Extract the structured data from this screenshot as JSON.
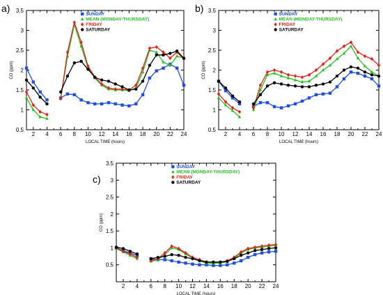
{
  "colors": {
    "SUNDAY": "#1f4fe0",
    "MEAN (MONDAY-THURSDAY)": "#22c21c",
    "FRIDAY": "#e2231a",
    "SATURDAY": "#000000"
  },
  "chart_data": [
    {
      "panel": "a)",
      "type": "line",
      "xlabel": "LOCAL TIME (hours)",
      "ylabel": "CO (ppm)",
      "xlim": [
        1,
        24
      ],
      "ylim": [
        0.5,
        3.5
      ],
      "xticks": [
        2,
        4,
        6,
        8,
        10,
        12,
        14,
        16,
        18,
        20,
        22,
        24
      ],
      "yticks": [
        0.5,
        1,
        1.5,
        2,
        2.5,
        3,
        3.5
      ],
      "legend": [
        "SUNDAY",
        "MEAN (MONDAY-THURSDAY)",
        "FRIDAY",
        "SATURDAY"
      ],
      "legend_position": "top-center",
      "series": [
        {
          "name": "SUNDAY",
          "marker": "square",
          "x": [
            1,
            2,
            3,
            4,
            6,
            7,
            8,
            9,
            10,
            11,
            12,
            13,
            14,
            15,
            16,
            17,
            18,
            19,
            20,
            21,
            22,
            23,
            24
          ],
          "y": [
            2.05,
            1.7,
            1.45,
            1.25,
            1.3,
            1.4,
            1.38,
            1.25,
            1.18,
            1.15,
            1.15,
            1.18,
            1.15,
            1.12,
            1.1,
            1.15,
            1.38,
            1.8,
            1.98,
            2.05,
            2.15,
            2.05,
            1.62
          ]
        },
        {
          "name": "MEAN (MONDAY-THURSDAY)",
          "marker": "triangle",
          "x": [
            1,
            2,
            3,
            4,
            6,
            7,
            8,
            9,
            10,
            11,
            12,
            13,
            14,
            15,
            16,
            17,
            18,
            19,
            20,
            21,
            22,
            23,
            24
          ],
          "y": [
            1.3,
            1.0,
            0.82,
            0.78,
            1.28,
            2.35,
            3.15,
            2.6,
            2.05,
            1.8,
            1.62,
            1.52,
            1.5,
            1.5,
            1.48,
            1.55,
            1.95,
            2.5,
            2.45,
            2.2,
            2.12,
            2.35,
            2.3
          ]
        },
        {
          "name": "FRIDAY",
          "marker": "diamond",
          "x": [
            1,
            2,
            3,
            4,
            6,
            7,
            8,
            9,
            10,
            11,
            12,
            13,
            14,
            15,
            16,
            17,
            18,
            19,
            20,
            21,
            22,
            23,
            24
          ],
          "y": [
            1.45,
            1.12,
            0.95,
            0.88,
            1.28,
            2.45,
            3.2,
            2.7,
            2.1,
            1.82,
            1.65,
            1.55,
            1.52,
            1.52,
            1.5,
            1.62,
            2.05,
            2.55,
            2.58,
            2.45,
            2.3,
            2.45,
            2.28
          ]
        },
        {
          "name": "SATURDAY",
          "marker": "circle",
          "x": [
            1,
            2,
            3,
            4,
            6,
            7,
            8,
            9,
            10,
            11,
            12,
            13,
            14,
            15,
            16,
            17,
            18,
            19,
            20,
            21,
            22,
            23,
            24
          ],
          "y": [
            1.75,
            1.55,
            1.32,
            1.15,
            1.45,
            1.85,
            2.18,
            2.22,
            2.02,
            1.82,
            1.75,
            1.72,
            1.65,
            1.58,
            1.5,
            1.52,
            1.72,
            2.12,
            2.38,
            2.38,
            2.42,
            2.48,
            2.3
          ]
        }
      ]
    },
    {
      "panel": "b)",
      "type": "line",
      "xlabel": "LOCAL TIME (hours)",
      "ylabel": "CO (ppm)",
      "xlim": [
        1,
        24
      ],
      "ylim": [
        0.5,
        3.5
      ],
      "xticks": [
        2,
        4,
        6,
        8,
        10,
        12,
        14,
        16,
        18,
        20,
        22,
        24
      ],
      "yticks": [
        0.5,
        1,
        1.5,
        2,
        2.5,
        3,
        3.5
      ],
      "legend": [
        "SUNDAY",
        "MEAN (MONDAY-THURSDAY)",
        "FRIDAY",
        "SATURDAY"
      ],
      "legend_position": "top-center",
      "series": [
        {
          "name": "SUNDAY",
          "marker": "square",
          "x": [
            1,
            2,
            3,
            4,
            6,
            7,
            8,
            9,
            10,
            11,
            12,
            13,
            14,
            15,
            16,
            17,
            18,
            19,
            20,
            21,
            22,
            23,
            24
          ],
          "y": [
            1.72,
            1.48,
            1.3,
            1.15,
            1.08,
            1.18,
            1.18,
            1.08,
            1.05,
            1.1,
            1.15,
            1.22,
            1.3,
            1.38,
            1.4,
            1.42,
            1.58,
            1.78,
            1.95,
            1.92,
            1.85,
            1.78,
            1.6
          ]
        },
        {
          "name": "MEAN (MONDAY-THURSDAY)",
          "marker": "triangle",
          "x": [
            1,
            2,
            3,
            4,
            6,
            7,
            8,
            9,
            10,
            11,
            12,
            13,
            14,
            15,
            16,
            17,
            18,
            19,
            20,
            21,
            22,
            23,
            24
          ],
          "y": [
            1.3,
            1.12,
            0.98,
            0.82,
            1.0,
            1.5,
            1.88,
            1.92,
            1.85,
            1.8,
            1.75,
            1.7,
            1.72,
            1.85,
            2.0,
            2.12,
            2.28,
            2.42,
            2.6,
            2.3,
            2.1,
            1.95,
            1.85
          ]
        },
        {
          "name": "FRIDAY",
          "marker": "diamond",
          "x": [
            1,
            2,
            3,
            4,
            6,
            7,
            8,
            9,
            10,
            11,
            12,
            13,
            14,
            15,
            16,
            17,
            18,
            19,
            20,
            21,
            22,
            23,
            24
          ],
          "y": [
            1.4,
            1.2,
            1.05,
            0.95,
            1.05,
            1.62,
            1.95,
            2.0,
            1.95,
            1.88,
            1.85,
            1.82,
            1.88,
            2.0,
            2.15,
            2.3,
            2.48,
            2.6,
            2.7,
            2.45,
            2.35,
            2.28,
            2.12
          ]
        },
        {
          "name": "SATURDAY",
          "marker": "circle",
          "x": [
            1,
            2,
            3,
            4,
            6,
            7,
            8,
            9,
            10,
            11,
            12,
            13,
            14,
            15,
            16,
            17,
            18,
            19,
            20,
            21,
            22,
            23,
            24
          ],
          "y": [
            1.72,
            1.55,
            1.35,
            1.2,
            1.15,
            1.38,
            1.6,
            1.68,
            1.65,
            1.62,
            1.6,
            1.58,
            1.58,
            1.62,
            1.65,
            1.7,
            1.85,
            2.0,
            2.08,
            2.05,
            1.95,
            1.88,
            1.85
          ]
        }
      ]
    },
    {
      "panel": "c)",
      "type": "line",
      "xlabel": "LOCAL TIME (hours)",
      "ylabel": "CO (ppm)",
      "xlim": [
        1,
        24
      ],
      "ylim": [
        0,
        3.5
      ],
      "xticks": [
        2,
        4,
        6,
        8,
        10,
        12,
        14,
        16,
        18,
        20,
        22,
        24
      ],
      "yticks": [
        0.5,
        1,
        1.5,
        2,
        2.5,
        3,
        3.5
      ],
      "legend": [
        "SUNDAY",
        "MEAN (MONDAY-THURSDAY)",
        "FRIDAY",
        "SATURDAY"
      ],
      "legend_position": "top-center",
      "series": [
        {
          "name": "SUNDAY",
          "marker": "square",
          "x": [
            1,
            2,
            3,
            4,
            6,
            7,
            8,
            9,
            10,
            11,
            12,
            13,
            14,
            15,
            16,
            17,
            18,
            19,
            20,
            21,
            22,
            23,
            24
          ],
          "y": [
            1.0,
            0.92,
            0.85,
            0.78,
            0.68,
            0.65,
            0.65,
            0.62,
            0.58,
            0.55,
            0.52,
            0.5,
            0.5,
            0.48,
            0.48,
            0.5,
            0.55,
            0.62,
            0.72,
            0.8,
            0.85,
            0.88,
            0.9
          ]
        },
        {
          "name": "MEAN (MONDAY-THURSDAY)",
          "marker": "triangle",
          "x": [
            1,
            2,
            3,
            4,
            6,
            7,
            8,
            9,
            10,
            11,
            12,
            13,
            14,
            15,
            16,
            17,
            18,
            19,
            20,
            21,
            22,
            23,
            24
          ],
          "y": [
            0.98,
            0.88,
            0.78,
            0.68,
            0.6,
            0.65,
            0.8,
            1.0,
            0.95,
            0.82,
            0.7,
            0.62,
            0.55,
            0.55,
            0.55,
            0.6,
            0.7,
            0.85,
            0.95,
            1.0,
            1.02,
            1.05,
            1.08
          ]
        },
        {
          "name": "FRIDAY",
          "marker": "diamond",
          "x": [
            1,
            2,
            3,
            4,
            6,
            7,
            8,
            9,
            10,
            11,
            12,
            13,
            14,
            15,
            16,
            17,
            18,
            19,
            20,
            21,
            22,
            23,
            24
          ],
          "y": [
            1.0,
            0.9,
            0.82,
            0.72,
            0.62,
            0.68,
            0.85,
            1.05,
            0.98,
            0.85,
            0.72,
            0.65,
            0.58,
            0.58,
            0.58,
            0.62,
            0.72,
            0.88,
            0.98,
            1.02,
            1.05,
            1.08,
            1.1
          ]
        },
        {
          "name": "SATURDAY",
          "marker": "circle",
          "x": [
            1,
            2,
            3,
            4,
            6,
            7,
            8,
            9,
            10,
            11,
            12,
            13,
            14,
            15,
            16,
            17,
            18,
            19,
            20,
            21,
            22,
            23,
            24
          ],
          "y": [
            1.02,
            0.98,
            0.9,
            0.82,
            0.68,
            0.72,
            0.75,
            0.8,
            0.78,
            0.72,
            0.68,
            0.62,
            0.58,
            0.58,
            0.58,
            0.6,
            0.68,
            0.78,
            0.85,
            0.92,
            0.95,
            0.98,
            1.0
          ]
        }
      ]
    }
  ]
}
